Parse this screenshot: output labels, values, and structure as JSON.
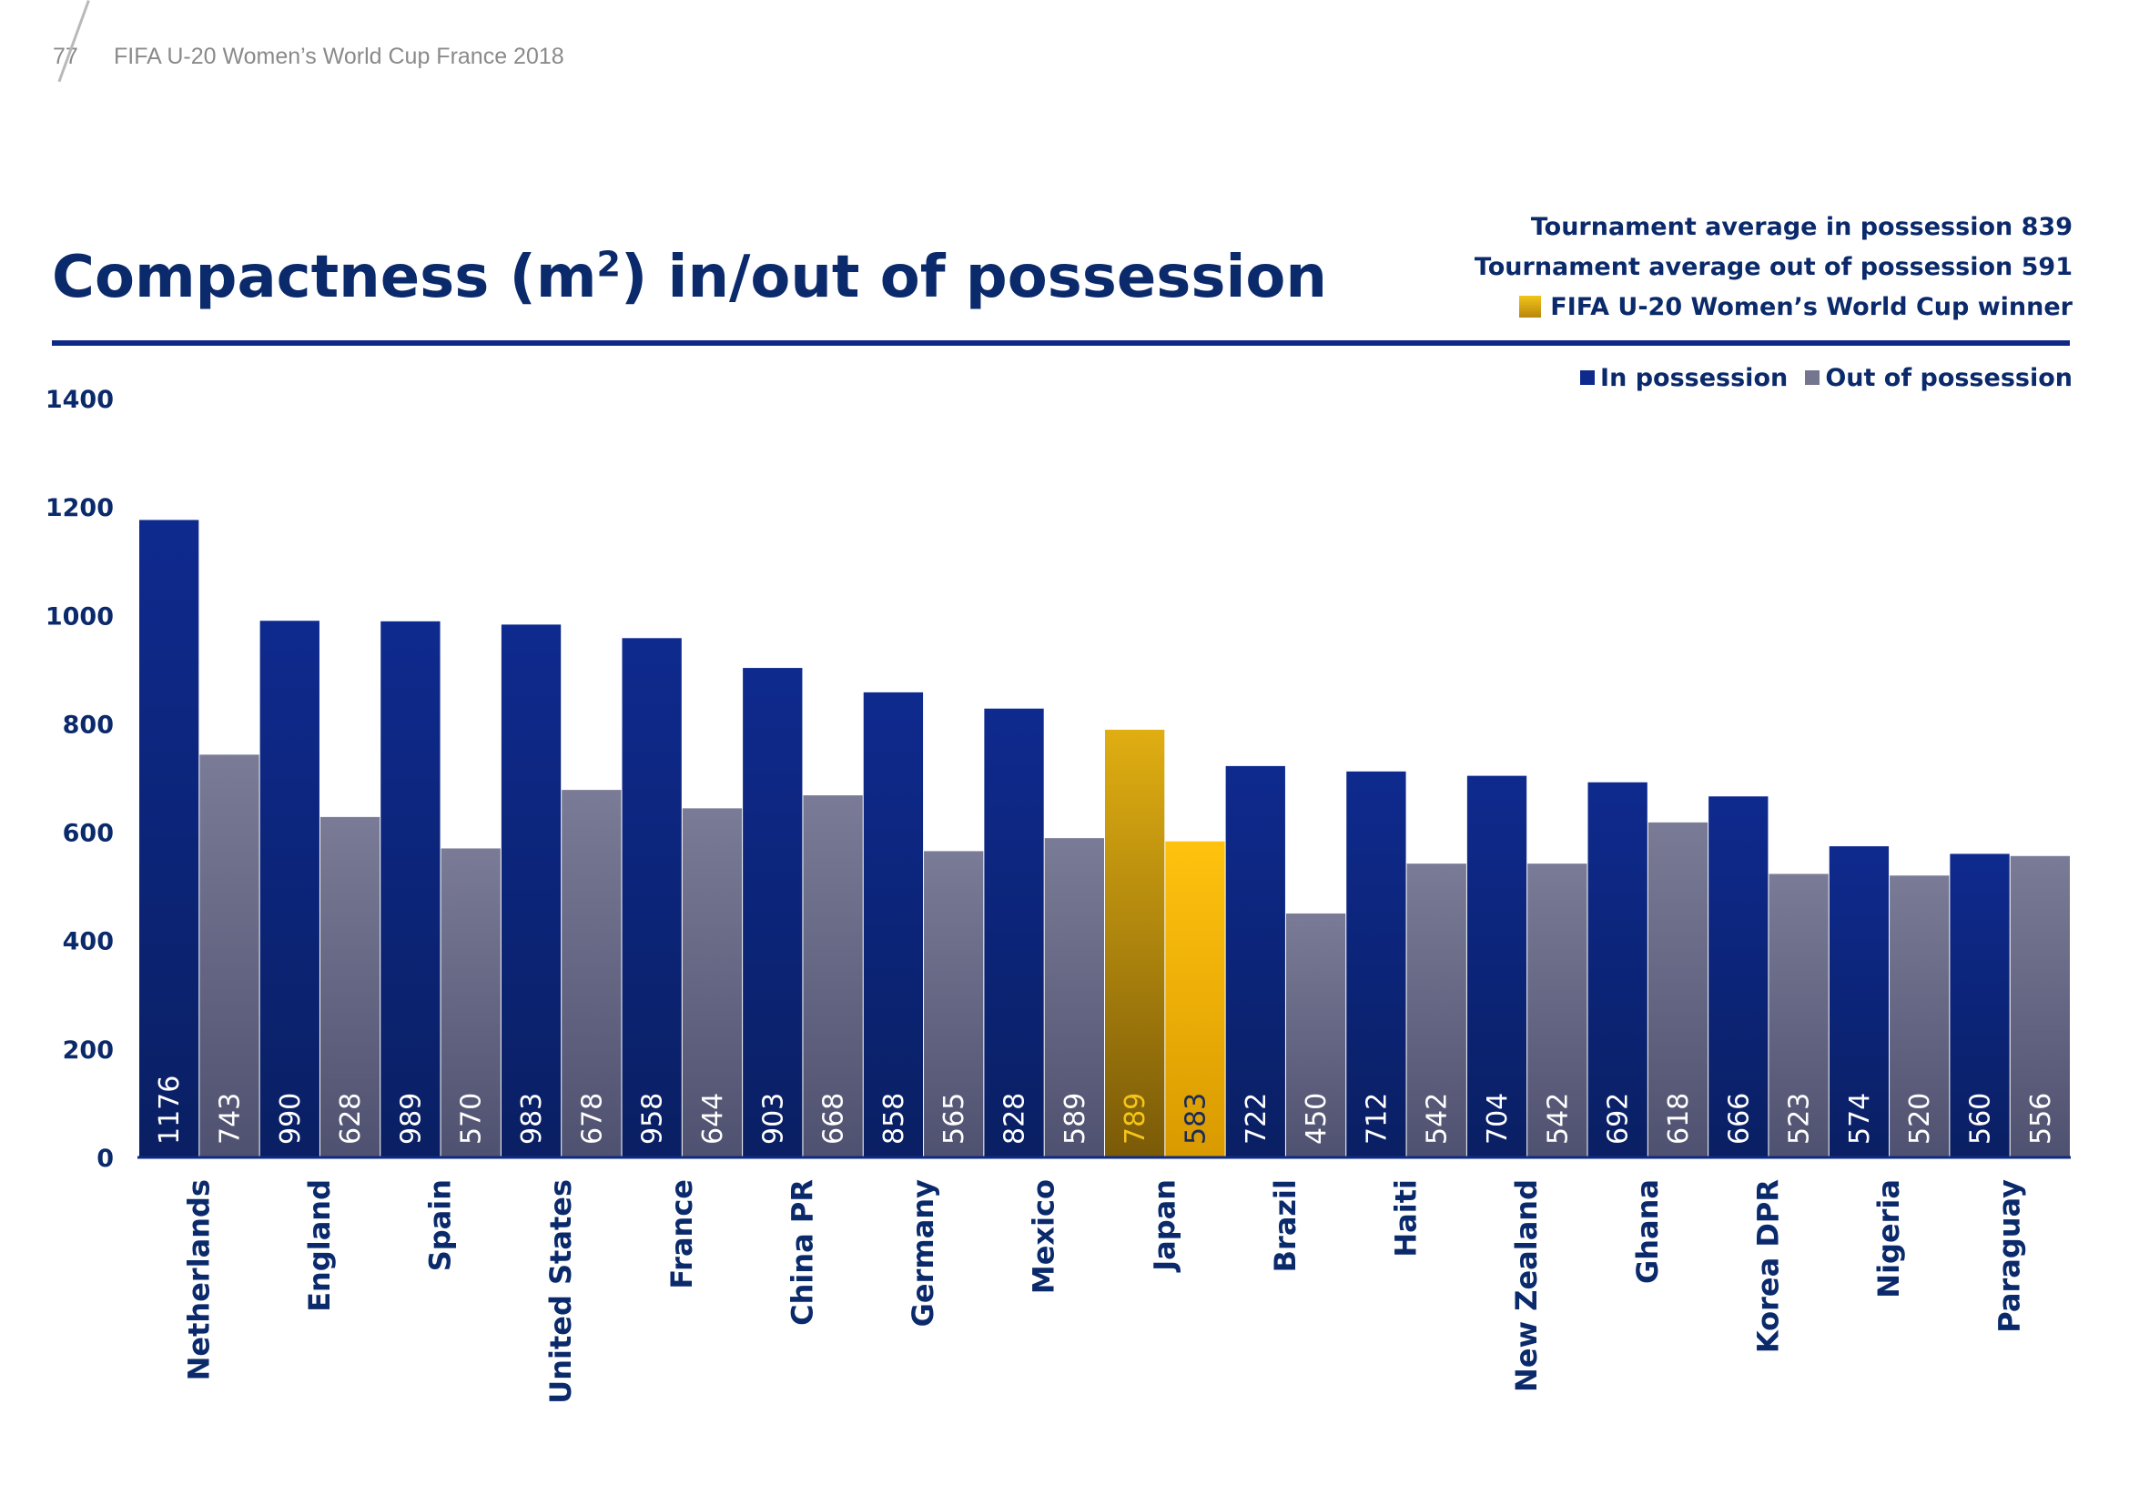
{
  "header": {
    "page_number": "77",
    "publication": "FIFA U-20 Women’s World Cup France 2018"
  },
  "notes": {
    "avg_in": "Tournament average in possession 839",
    "avg_out": "Tournament average out of possession 591",
    "winner": "FIFA U-20 Women’s World Cup winner"
  },
  "colors": {
    "in_possession": "#0d2a8c",
    "out_of_possession": "#74758f",
    "winner_in": "#d39e0b",
    "winner_out": "#f2b705",
    "title": "#0b2a6b"
  },
  "chart_data": {
    "type": "bar",
    "title": "Compactness (m²) in/out of possession",
    "xlabel": "",
    "ylabel": "",
    "ylim": [
      0,
      1400
    ],
    "yticks": [
      0,
      200,
      400,
      600,
      800,
      1000,
      1200,
      1400
    ],
    "grid": false,
    "legend_position": "top-right",
    "categories": [
      "Netherlands",
      "England",
      "Spain",
      "United States",
      "France",
      "China PR",
      "Germany",
      "Mexico",
      "Japan",
      "Brazil",
      "Haiti",
      "New Zealand",
      "Ghana",
      "Korea DPR",
      "Nigeria",
      "Paraguay"
    ],
    "series": [
      {
        "name": "In possession",
        "values": [
          1176,
          990,
          989,
          983,
          958,
          903,
          858,
          828,
          789,
          722,
          712,
          704,
          692,
          666,
          574,
          560
        ]
      },
      {
        "name": "Out of possession",
        "values": [
          743,
          628,
          570,
          678,
          644,
          668,
          565,
          589,
          583,
          450,
          542,
          542,
          618,
          523,
          520,
          556
        ]
      }
    ],
    "highlight_category": "Japan"
  }
}
